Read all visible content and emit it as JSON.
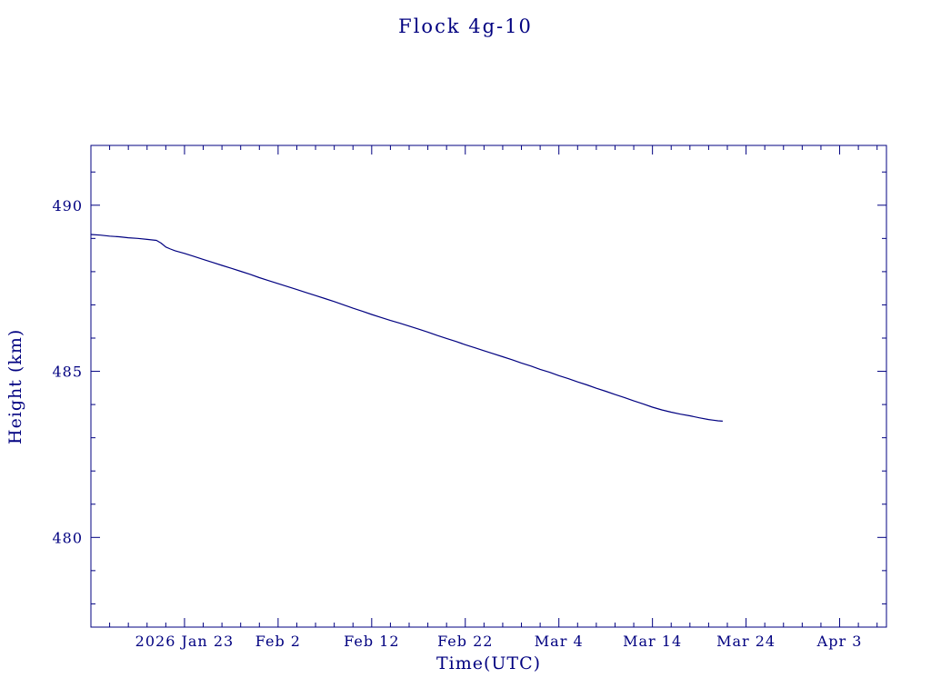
{
  "chart_data": {
    "type": "line",
    "title": "Flock 4g-10",
    "xlabel": "Time(UTC)",
    "ylabel": "Height (km)",
    "color": "#000080",
    "background": "#ffffff",
    "legend": "none",
    "grid": false,
    "x_axis_unit": "days since 2026 Jan 13",
    "x_range_days": [
      0,
      85
    ],
    "ylim": [
      477.3,
      491.8
    ],
    "x_ticks": [
      {
        "day": 10,
        "label": "2026 Jan 23"
      },
      {
        "day": 20,
        "label": "Feb 2"
      },
      {
        "day": 30,
        "label": "Feb 12"
      },
      {
        "day": 40,
        "label": "Feb 22"
      },
      {
        "day": 50,
        "label": "Mar 4"
      },
      {
        "day": 60,
        "label": "Mar 14"
      },
      {
        "day": 70,
        "label": "Mar 24"
      },
      {
        "day": 80,
        "label": "Apr 3"
      }
    ],
    "x_minor_step_days": 2,
    "y_ticks": [
      480,
      485,
      490
    ],
    "y_minor_step": 1,
    "series": [
      {
        "name": "height",
        "points": [
          [
            0,
            489.12
          ],
          [
            1,
            489.1
          ],
          [
            2,
            489.07
          ],
          [
            3,
            489.05
          ],
          [
            4,
            489.02
          ],
          [
            5,
            489.0
          ],
          [
            6,
            488.97
          ],
          [
            7,
            488.94
          ],
          [
            7.5,
            488.86
          ],
          [
            8,
            488.74
          ],
          [
            8.5,
            488.68
          ],
          [
            9,
            488.63
          ],
          [
            10,
            488.55
          ],
          [
            11,
            488.46
          ],
          [
            12,
            488.37
          ],
          [
            13,
            488.28
          ],
          [
            14,
            488.19
          ],
          [
            15,
            488.1
          ],
          [
            16,
            488.01
          ],
          [
            17,
            487.92
          ],
          [
            18,
            487.82
          ],
          [
            19,
            487.73
          ],
          [
            20,
            487.64
          ],
          [
            21,
            487.55
          ],
          [
            22,
            487.46
          ],
          [
            23,
            487.37
          ],
          [
            24,
            487.28
          ],
          [
            25,
            487.19
          ],
          [
            26,
            487.1
          ],
          [
            27,
            487.0
          ],
          [
            28,
            486.9
          ],
          [
            29,
            486.81
          ],
          [
            30,
            486.71
          ],
          [
            31,
            486.62
          ],
          [
            32,
            486.53
          ],
          [
            33,
            486.45
          ],
          [
            34,
            486.36
          ],
          [
            35,
            486.27
          ],
          [
            36,
            486.18
          ],
          [
            37,
            486.08
          ],
          [
            38,
            485.99
          ],
          [
            39,
            485.9
          ],
          [
            40,
            485.8
          ],
          [
            41,
            485.71
          ],
          [
            42,
            485.62
          ],
          [
            43,
            485.53
          ],
          [
            44,
            485.44
          ],
          [
            45,
            485.35
          ],
          [
            46,
            485.25
          ],
          [
            47,
            485.16
          ],
          [
            48,
            485.06
          ],
          [
            49,
            484.97
          ],
          [
            50,
            484.87
          ],
          [
            51,
            484.78
          ],
          [
            52,
            484.68
          ],
          [
            53,
            484.59
          ],
          [
            54,
            484.49
          ],
          [
            55,
            484.4
          ],
          [
            56,
            484.3
          ],
          [
            57,
            484.21
          ],
          [
            58,
            484.11
          ],
          [
            59,
            484.02
          ],
          [
            60,
            483.92
          ],
          [
            61,
            483.84
          ],
          [
            62,
            483.77
          ],
          [
            63,
            483.71
          ],
          [
            64,
            483.66
          ],
          [
            65,
            483.6
          ],
          [
            66,
            483.55
          ],
          [
            66.5,
            483.53
          ],
          [
            67,
            483.51
          ],
          [
            67.5,
            483.5
          ]
        ]
      }
    ]
  }
}
